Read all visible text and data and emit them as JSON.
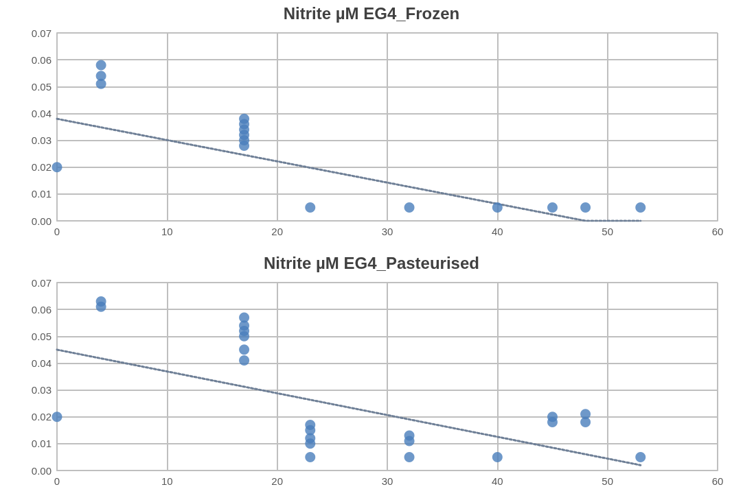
{
  "chart_data": [
    {
      "type": "scatter",
      "title": "Nitrite µM EG4_Frozen",
      "xlim": [
        0,
        60
      ],
      "xticks": [
        0,
        10,
        20,
        30,
        40,
        50,
        60
      ],
      "ylim": [
        0,
        0.07
      ],
      "yticks": [
        {
          "value": 0,
          "label": "0.00"
        },
        {
          "value": 0.01,
          "label": "0.01"
        },
        {
          "value": 0.02,
          "label": "0.02"
        },
        {
          "value": 0.03,
          "label": "0.03"
        },
        {
          "value": 0.04,
          "label": "0.04"
        },
        {
          "value": 0.05,
          "label": "0.05"
        },
        {
          "value": 0.06,
          "label": "0.06"
        },
        {
          "value": 0.07,
          "label": "0.07"
        }
      ],
      "grid": true,
      "marker": "circle",
      "series": [
        {
          "color": "#4a7ebb",
          "x": [
            0,
            4,
            4,
            4,
            17,
            17,
            17,
            17,
            17,
            17,
            23,
            32,
            40,
            45,
            48,
            53
          ],
          "values": [
            0.02,
            0.058,
            0.054,
            0.051,
            0.038,
            0.036,
            0.034,
            0.032,
            0.03,
            0.028,
            0.005,
            0.005,
            0.005,
            0.005,
            0.005,
            0.005
          ]
        },
        {
          "type": "line",
          "color": "#6e7f96",
          "line_style": "dotted",
          "marker": "none",
          "x": [
            0,
            48,
            53
          ],
          "values": [
            0.038,
            0,
            0
          ]
        }
      ]
    },
    {
      "type": "scatter",
      "title": "Nitrite µM EG4_Pasteurised",
      "xlim": [
        0,
        60
      ],
      "xticks": [
        0,
        10,
        20,
        30,
        40,
        50,
        60
      ],
      "ylim": [
        0,
        0.07
      ],
      "yticks": [
        {
          "value": 0,
          "label": "0.00"
        },
        {
          "value": 0.01,
          "label": "0.01"
        },
        {
          "value": 0.02,
          "label": "0.02"
        },
        {
          "value": 0.03,
          "label": "0.03"
        },
        {
          "value": 0.04,
          "label": "0.04"
        },
        {
          "value": 0.05,
          "label": "0.05"
        },
        {
          "value": 0.06,
          "label": "0.06"
        },
        {
          "value": 0.07,
          "label": "0.07"
        }
      ],
      "grid": true,
      "marker": "circle",
      "series": [
        {
          "color": "#4a7ebb",
          "x": [
            0,
            4,
            4,
            17,
            17,
            17,
            17,
            17,
            17,
            23,
            23,
            23,
            23,
            23,
            32,
            32,
            32,
            40,
            45,
            45,
            48,
            48,
            53
          ],
          "values": [
            0.02,
            0.063,
            0.061,
            0.057,
            0.054,
            0.052,
            0.05,
            0.045,
            0.041,
            0.017,
            0.015,
            0.012,
            0.01,
            0.005,
            0.013,
            0.011,
            0.005,
            0.005,
            0.02,
            0.018,
            0.021,
            0.018,
            0.005
          ]
        },
        {
          "type": "line",
          "color": "#6e7f96",
          "line_style": "dotted",
          "marker": "none",
          "x": [
            0,
            53
          ],
          "values": [
            0.045,
            0.002
          ]
        }
      ]
    }
  ]
}
